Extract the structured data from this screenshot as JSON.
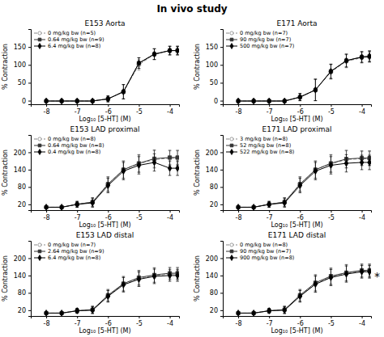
{
  "title": "In vivo study",
  "chart_data": [
    {
      "type": "line",
      "title": "E153 Aorta",
      "xlabel": "Log₁₀ [5-HT] (M)",
      "ylabel": "% Contraction",
      "xlim": [
        -8.5,
        -3.7
      ],
      "xticks": [
        -8,
        -7,
        -6,
        -5,
        -4
      ],
      "ylim": [
        -10,
        200
      ],
      "yticks": [
        0,
        50,
        100,
        150
      ],
      "legend": "upper left",
      "grid": false,
      "x": [
        -8,
        -7.5,
        -7,
        -6.5,
        -6,
        -5.5,
        -5,
        -4.5,
        -4,
        -3.75
      ],
      "series": [
        {
          "name": "0 mg/kg bw (n=5)",
          "color": "#888888",
          "marker": "circle-open",
          "line_style": "dashed",
          "values": [
            -1,
            -1,
            -1,
            -1,
            5,
            25,
            100,
            130,
            140,
            140
          ],
          "errors": [
            2,
            2,
            2,
            2,
            8,
            20,
            15,
            15,
            12,
            12
          ]
        },
        {
          "name": "0.64 mg/kg bw (n=9)",
          "color": "#333333",
          "marker": "square",
          "line_style": "solid",
          "values": [
            -1,
            -1,
            -1,
            -1,
            5,
            25,
            105,
            130,
            140,
            140
          ],
          "errors": [
            2,
            2,
            2,
            2,
            8,
            20,
            15,
            15,
            12,
            12
          ]
        },
        {
          "name": "6.4 mg/kg bw (n=8)",
          "color": "#000000",
          "marker": "diamond",
          "line_style": "solid",
          "values": [
            -1,
            -1,
            -1,
            -1,
            5,
            25,
            105,
            130,
            140,
            140
          ],
          "errors": [
            2,
            2,
            2,
            2,
            8,
            20,
            15,
            15,
            12,
            12
          ]
        }
      ]
    },
    {
      "type": "line",
      "title": "E171 Aorta",
      "xlabel": "Log₁₀ [5-HT] (M)",
      "ylabel": "% Contraction",
      "xlim": [
        -8.5,
        -3.7
      ],
      "xticks": [
        -8,
        -7,
        -6,
        -5,
        -4
      ],
      "ylim": [
        -10,
        200
      ],
      "yticks": [
        0,
        50,
        100,
        150
      ],
      "legend": "upper left",
      "grid": false,
      "x": [
        -8,
        -7.5,
        -7,
        -6.5,
        -6,
        -5.5,
        -5,
        -4.5,
        -4,
        -3.75
      ],
      "series": [
        {
          "name": "0 mg/kg bw (n=7)",
          "color": "#888888",
          "marker": "circle-open",
          "line_style": "dashed",
          "values": [
            -1,
            -1,
            -1,
            -1,
            10,
            30,
            80,
            110,
            120,
            122
          ],
          "errors": [
            2,
            2,
            2,
            2,
            10,
            30,
            20,
            18,
            15,
            15
          ]
        },
        {
          "name": "90 mg/kg bw (n=7)",
          "color": "#333333",
          "marker": "square",
          "line_style": "solid",
          "values": [
            -1,
            -1,
            -1,
            -1,
            10,
            30,
            82,
            112,
            122,
            124
          ],
          "errors": [
            2,
            2,
            2,
            2,
            10,
            30,
            20,
            18,
            15,
            15
          ]
        },
        {
          "name": "500 mg/kg bw (n=7)",
          "color": "#000000",
          "marker": "diamond",
          "line_style": "solid",
          "values": [
            -1,
            -1,
            -1,
            -1,
            10,
            30,
            82,
            112,
            122,
            124
          ],
          "errors": [
            2,
            2,
            2,
            2,
            10,
            30,
            20,
            18,
            15,
            15
          ]
        }
      ]
    },
    {
      "type": "line",
      "title": "E153 LAD proximal",
      "xlabel": "Log₁₀ [5-HT] (M)",
      "ylabel": "% Contraction",
      "xlim": [
        -8.5,
        -3.7
      ],
      "xticks": [
        -8,
        -7,
        -6,
        -5,
        -4
      ],
      "ylim": [
        0,
        260
      ],
      "yticks": [
        20,
        80,
        140,
        200
      ],
      "legend": "upper left",
      "grid": false,
      "x": [
        -8,
        -7.5,
        -7,
        -6.5,
        -6,
        -5.5,
        -5,
        -4.5,
        -4,
        -3.75
      ],
      "series": [
        {
          "name": "0 mg/kg bw (n=8)",
          "color": "#888888",
          "marker": "circle-open",
          "line_style": "dashed",
          "values": [
            10,
            10,
            20,
            28,
            90,
            140,
            160,
            175,
            180,
            180
          ],
          "errors": [
            3,
            3,
            10,
            15,
            25,
            30,
            30,
            30,
            25,
            25
          ]
        },
        {
          "name": "0.64 mg/kg bw (n=8)",
          "color": "#333333",
          "marker": "square",
          "line_style": "solid",
          "values": [
            10,
            10,
            20,
            28,
            90,
            140,
            162,
            178,
            182,
            182
          ],
          "errors": [
            3,
            3,
            10,
            15,
            25,
            30,
            30,
            30,
            25,
            25
          ]
        },
        {
          "name": "0.4 mg/kg bw (n=8)",
          "color": "#000000",
          "marker": "diamond",
          "line_style": "solid",
          "values": [
            10,
            10,
            20,
            25,
            85,
            135,
            155,
            165,
            145,
            145
          ],
          "errors": [
            3,
            3,
            10,
            15,
            25,
            30,
            30,
            30,
            25,
            25
          ]
        }
      ]
    },
    {
      "type": "line",
      "title": "E171 LAD proximal",
      "xlabel": "Log₁₀ [5-HT] (M)",
      "ylabel": "% Contraction",
      "xlim": [
        -8.5,
        -3.7
      ],
      "xticks": [
        -8,
        -7,
        -6,
        -5,
        -4
      ],
      "ylim": [
        0,
        260
      ],
      "yticks": [
        20,
        80,
        140,
        200
      ],
      "legend": "upper left",
      "grid": false,
      "x": [
        -8,
        -7.5,
        -7,
        -6.5,
        -6,
        -5.5,
        -5,
        -4.5,
        -4,
        -3.75
      ],
      "series": [
        {
          "name": "3 mg/kg bw (n=8)",
          "color": "#888888",
          "marker": "circle-open",
          "line_style": "dashed",
          "values": [
            10,
            10,
            20,
            28,
            90,
            140,
            160,
            175,
            178,
            178
          ],
          "errors": [
            3,
            3,
            10,
            15,
            25,
            30,
            30,
            30,
            25,
            25
          ]
        },
        {
          "name": "52 mg/kg bw (n=8)",
          "color": "#333333",
          "marker": "square",
          "line_style": "solid",
          "values": [
            10,
            10,
            20,
            28,
            90,
            140,
            162,
            177,
            180,
            180
          ],
          "errors": [
            3,
            3,
            10,
            15,
            25,
            30,
            30,
            30,
            25,
            25
          ]
        },
        {
          "name": "522 mg/kg bw (n=8)",
          "color": "#000000",
          "marker": "diamond",
          "line_style": "solid",
          "values": [
            10,
            10,
            20,
            25,
            85,
            135,
            155,
            162,
            165,
            165
          ],
          "errors": [
            3,
            3,
            10,
            15,
            25,
            30,
            30,
            30,
            25,
            25
          ]
        }
      ]
    },
    {
      "type": "line",
      "title": "E153 LAD distal",
      "xlabel": "Log₁₀ [5-HT] (M)",
      "ylabel": "% Contraction",
      "xlim": [
        -8.5,
        -3.7
      ],
      "xticks": [
        -8,
        -7,
        -6,
        -5,
        -4
      ],
      "ylim": [
        0,
        260
      ],
      "yticks": [
        20,
        80,
        140,
        200
      ],
      "legend": "upper left",
      "grid": false,
      "x": [
        -8,
        -7.5,
        -7,
        -6.5,
        -6,
        -5.5,
        -5,
        -4.5,
        -4,
        -3.75
      ],
      "series": [
        {
          "name": "0 mg/kg bw (n=7)",
          "color": "#888888",
          "marker": "circle-open",
          "line_style": "dashed",
          "values": [
            10,
            10,
            18,
            22,
            70,
            110,
            130,
            140,
            145,
            145
          ],
          "errors": [
            3,
            3,
            8,
            12,
            20,
            25,
            25,
            25,
            20,
            20
          ]
        },
        {
          "name": "2.64 mg/kg bw (n=9)",
          "color": "#333333",
          "marker": "square",
          "line_style": "solid",
          "values": [
            10,
            10,
            18,
            22,
            72,
            112,
            133,
            142,
            148,
            148
          ],
          "errors": [
            3,
            3,
            8,
            12,
            20,
            25,
            25,
            25,
            20,
            20
          ]
        },
        {
          "name": "6.4 mg/kg bw (n=8)",
          "color": "#000000",
          "marker": "diamond",
          "line_style": "solid",
          "values": [
            10,
            10,
            18,
            20,
            68,
            108,
            127,
            137,
            140,
            140
          ],
          "errors": [
            3,
            3,
            8,
            12,
            20,
            25,
            25,
            25,
            20,
            20
          ]
        }
      ]
    },
    {
      "type": "line",
      "title": "E171 LAD distal",
      "xlabel": "Log₁₀ [5-HT] (M)",
      "ylabel": "% Contraction",
      "xlim": [
        -8.5,
        -3.7
      ],
      "xticks": [
        -8,
        -7,
        -6,
        -5,
        -4
      ],
      "ylim": [
        0,
        260
      ],
      "yticks": [
        20,
        80,
        140,
        200
      ],
      "legend": "upper left",
      "grid": false,
      "annotation": "*",
      "x": [
        -8,
        -7.5,
        -7,
        -6.5,
        -6,
        -5.5,
        -5,
        -4.5,
        -4,
        -3.75
      ],
      "series": [
        {
          "name": "0 mg/kg bw (n=8)",
          "color": "#888888",
          "marker": "circle-open",
          "line_style": "dashed",
          "values": [
            10,
            10,
            18,
            22,
            70,
            112,
            135,
            148,
            155,
            155
          ],
          "errors": [
            3,
            3,
            8,
            12,
            20,
            28,
            28,
            28,
            22,
            22
          ]
        },
        {
          "name": "90 mg/kg bw (n=7)",
          "color": "#333333",
          "marker": "square",
          "line_style": "solid",
          "values": [
            10,
            10,
            18,
            22,
            72,
            115,
            138,
            150,
            158,
            158
          ],
          "errors": [
            3,
            3,
            8,
            12,
            20,
            28,
            28,
            28,
            22,
            22
          ]
        },
        {
          "name": "900 mg/kg bw (n=8)",
          "color": "#000000",
          "marker": "diamond",
          "line_style": "solid",
          "values": [
            10,
            10,
            18,
            20,
            68,
            110,
            133,
            145,
            153,
            153
          ],
          "errors": [
            3,
            3,
            8,
            12,
            20,
            28,
            28,
            28,
            22,
            22
          ]
        }
      ]
    }
  ]
}
